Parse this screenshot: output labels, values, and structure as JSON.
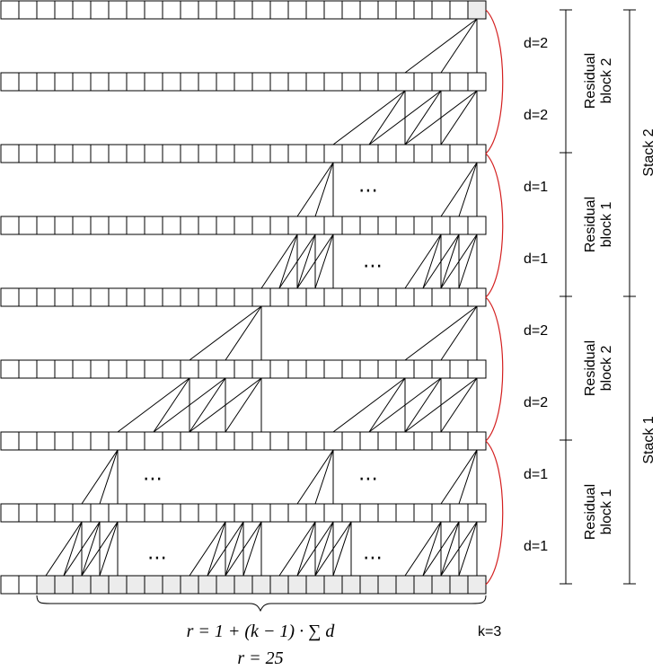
{
  "layers": 9,
  "cells_per_layer": 27,
  "kernel_size": 3,
  "receptive_field": 25,
  "dilation_labels": [
    "d=2",
    "d=2",
    "d=1",
    "d=1",
    "d=2",
    "d=2",
    "d=1",
    "d=1"
  ],
  "residual_blocks": [
    {
      "line1": "Residual",
      "line2": "block 2"
    },
    {
      "line1": "Residual",
      "line2": "block 1"
    },
    {
      "line1": "Residual",
      "line2": "block 2"
    },
    {
      "line1": "Residual",
      "line2": "block 1"
    }
  ],
  "stacks": [
    "Stack 2",
    "Stack 1"
  ],
  "ellipsis": "⋯",
  "formula_line1": "r = 1 + (k − 1) · ∑ d",
  "formula_line2": "r = 25",
  "kernel_label": "k=3",
  "colors": {
    "residual_arc": "#d42020",
    "shaded_cell": "#ececec"
  }
}
